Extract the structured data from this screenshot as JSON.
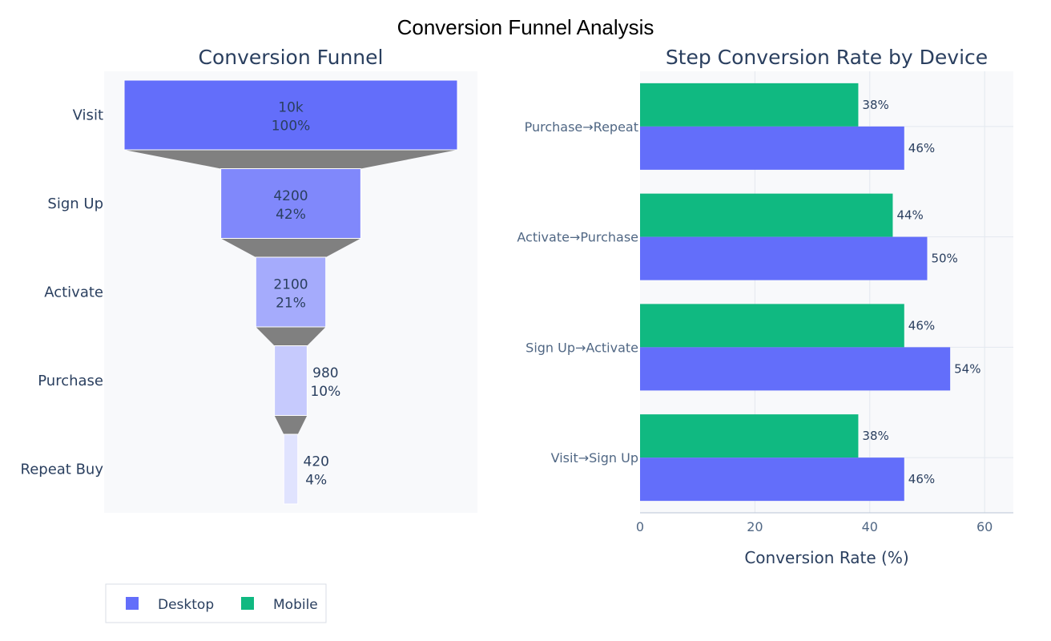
{
  "title": "Conversion Funnel Analysis",
  "chart_data": [
    {
      "type": "funnel",
      "title": "Conversion Funnel",
      "stages": [
        "Visit",
        "Sign Up",
        "Activate",
        "Purchase",
        "Repeat Buy"
      ],
      "values": [
        10000,
        4200,
        2100,
        980,
        420
      ],
      "value_labels": [
        "10k",
        "4200",
        "2100",
        "980",
        "420"
      ],
      "percent_labels": [
        "100%",
        "42%",
        "21%",
        "10%",
        "4%"
      ],
      "colors": [
        "#636efa",
        "#8088fb",
        "#a5abfc",
        "#c6cafd",
        "#e0e3fe"
      ],
      "connector_color": "#808080"
    },
    {
      "type": "bar",
      "orientation": "horizontal",
      "title": "Step Conversion Rate by Device",
      "categories": [
        "Visit→Sign Up",
        "Sign Up→Activate",
        "Activate→Purchase",
        "Purchase→Repeat"
      ],
      "series": [
        {
          "name": "Desktop",
          "color": "#636efa",
          "values": [
            46,
            54,
            50,
            46
          ],
          "labels": [
            "46%",
            "54%",
            "50%",
            "46%"
          ]
        },
        {
          "name": "Mobile",
          "color": "#10b981",
          "values": [
            38,
            46,
            44,
            38
          ],
          "labels": [
            "38%",
            "46%",
            "44%",
            "38%"
          ]
        }
      ],
      "xlabel": "Conversion Rate (%)",
      "xlim": [
        0,
        65
      ],
      "xticks": [
        0,
        20,
        40,
        60
      ],
      "xtick_labels": [
        "0",
        "20",
        "40",
        "60"
      ],
      "grid": true
    }
  ],
  "legend": {
    "position": "bottom-left",
    "items": [
      {
        "name": "Desktop",
        "color": "#636efa"
      },
      {
        "name": "Mobile",
        "color": "#10b981"
      }
    ]
  }
}
